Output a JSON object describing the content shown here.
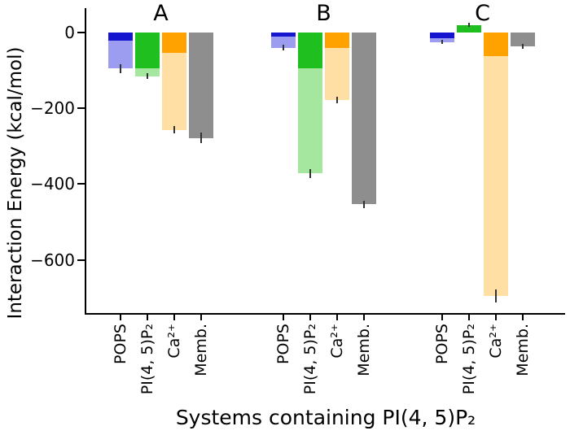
{
  "chart_data": {
    "type": "bar",
    "title": "",
    "xlabel": "Systems containing PI(4, 5)P₂",
    "ylabel": "Interaction Energy (kcal/mol)",
    "ylim": [
      -740,
      60
    ],
    "yticks": [
      0,
      -200,
      -400,
      -600
    ],
    "ytick_labels": [
      "0",
      "−200",
      "−400",
      "−600"
    ],
    "categories": [
      "POPS",
      "PI(4, 5)P₂",
      "Ca²⁺",
      "Memb."
    ],
    "legend": "none",
    "grid": false,
    "colors": {
      "POPS": {
        "dark": "#1515cf",
        "light": "#9c9cf0"
      },
      "PI(4, 5)P₂": {
        "dark": "#1fbf1f",
        "light": "#a6e7a0"
      },
      "Ca²⁺": {
        "dark": "#ffa200",
        "light": "#ffdfa3"
      },
      "Memb.": {
        "dark": "#8e8e8e",
        "light": "#8e8e8e"
      }
    },
    "groups": [
      {
        "label": "A",
        "bars": [
          {
            "category": "POPS",
            "opaque_value": -22,
            "total_value": -95,
            "error": 12
          },
          {
            "category": "PI(4, 5)P₂",
            "opaque_value": -95,
            "total_value": -115,
            "error": 8
          },
          {
            "category": "Ca²⁺",
            "opaque_value": -54,
            "total_value": -257,
            "error": 10
          },
          {
            "category": "Memb.",
            "opaque_value": -278,
            "total_value": -278,
            "error": 14
          }
        ]
      },
      {
        "label": "B",
        "bars": [
          {
            "category": "POPS",
            "opaque_value": -10,
            "total_value": -40,
            "error": 8
          },
          {
            "category": "PI(4, 5)P₂",
            "opaque_value": -95,
            "total_value": -372,
            "error": 12
          },
          {
            "category": "Ca²⁺",
            "opaque_value": -40,
            "total_value": -178,
            "error": 8
          },
          {
            "category": "Memb.",
            "opaque_value": -453,
            "total_value": -453,
            "error": 10
          }
        ]
      },
      {
        "label": "C",
        "bars": [
          {
            "category": "POPS",
            "opaque_value": -15,
            "total_value": -25,
            "error": 6
          },
          {
            "category": "PI(4, 5)P₂",
            "opaque_value": 20,
            "total_value": 20,
            "error": 5
          },
          {
            "category": "Ca²⁺",
            "opaque_value": -62,
            "total_value": -695,
            "error": 18
          },
          {
            "category": "Memb.",
            "opaque_value": -36,
            "total_value": -36,
            "error": 6
          }
        ]
      }
    ]
  }
}
